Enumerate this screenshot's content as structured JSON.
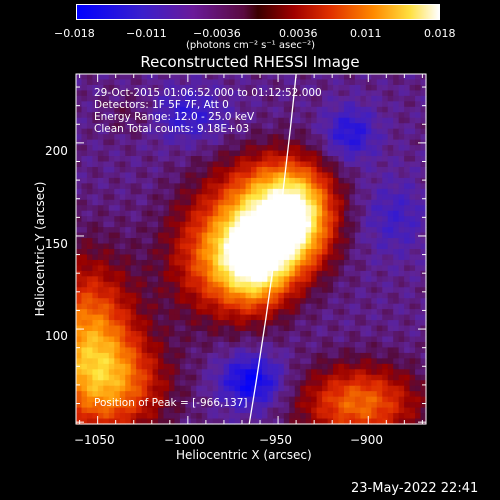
{
  "colorbar": {
    "tick_labels": [
      "−0.018",
      "−0.011",
      "−0.0036",
      "0.0036",
      "0.011",
      "0.018"
    ],
    "unit_text": "(photons cm⁻² s⁻¹ asec⁻²)",
    "range": [
      -0.018,
      0.018
    ]
  },
  "title": "Reconstructed RHESSI Image",
  "info_lines": [
    "29-Oct-2015 01:06:52.000 to 01:12:52.000",
    "Detectors: 1F 5F 7F, Att 0",
    "Energy Range: 12.0 - 25.0 keV",
    "Clean     Total counts: 9.18E+03"
  ],
  "peak_text": "Position of Peak = [-966,137]",
  "xlabel": "Heliocentric X (arcsec)",
  "ylabel": "Heliocentric Y (arcsec)",
  "timestamp": "23-May-2022 22:41",
  "chart_data": {
    "type": "heatmap",
    "title": "Reconstructed RHESSI Image",
    "xlabel": "Heliocentric X (arcsec)",
    "ylabel": "Heliocentric Y (arcsec)",
    "x_ticks": [
      -1050,
      -1000,
      -950,
      -900
    ],
    "y_ticks": [
      100,
      150,
      200
    ],
    "x_tick_labels": [
      "−1050",
      "−1000",
      "−950",
      "−900"
    ],
    "y_tick_labels": [
      "100",
      "150",
      "200"
    ],
    "xlim": [
      -1062,
      -868
    ],
    "ylim": [
      49,
      237
    ],
    "colormap": "blue-purple-red-yellow-white",
    "peak": [
      -966,
      137
    ],
    "limb_curve": [
      [
        -966,
        49
      ],
      [
        -940,
        237
      ]
    ]
  }
}
